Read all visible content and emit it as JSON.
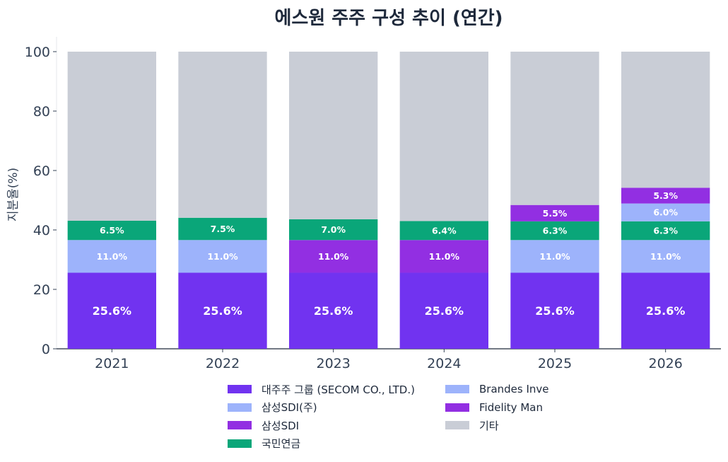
{
  "title": "에스원 주주 구성 추이 (연간)",
  "chart_data": {
    "type": "bar",
    "stacked": true,
    "title": "에스원 주주 구성 추이 (연간)",
    "xlabel": "",
    "ylabel": "지분율(%)",
    "ylim": [
      0,
      105
    ],
    "yticks": [
      "0",
      "20",
      "40",
      "60",
      "80",
      "100"
    ],
    "categories": [
      "2021",
      "2022",
      "2023",
      "2024",
      "2025",
      "2026"
    ],
    "series": [
      {
        "name": "대주주 그룹 (SECOM CO., LTD.)",
        "color": "#7133f0",
        "values": [
          25.6,
          25.6,
          25.6,
          25.6,
          25.6,
          25.6
        ],
        "labels": [
          "25.6%",
          "25.6%",
          "25.6%",
          "25.6%",
          "25.6%",
          "25.6%"
        ]
      },
      {
        "name": "삼성SDI(주)",
        "color": "#9db3fb",
        "values": [
          11.0,
          11.0,
          0,
          0,
          11.0,
          11.0
        ],
        "labels": [
          "11.0%",
          "11.0%",
          "",
          "",
          "11.0%",
          "11.0%"
        ]
      },
      {
        "name": "삼성SDI",
        "color": "#922fe2",
        "values": [
          0,
          0,
          11.0,
          11.0,
          0,
          0
        ],
        "labels": [
          "",
          "",
          "11.0%",
          "11.0%",
          "",
          ""
        ]
      },
      {
        "name": "국민연금",
        "color": "#0aa679",
        "values": [
          6.5,
          7.5,
          7.0,
          6.4,
          6.3,
          6.3
        ],
        "labels": [
          "6.5%",
          "7.5%",
          "7.0%",
          "6.4%",
          "6.3%",
          "6.3%"
        ]
      },
      {
        "name": "Brandes Inve",
        "color": "#9db3fb",
        "values": [
          0,
          0,
          0,
          0,
          0,
          6.0
        ],
        "labels": [
          "",
          "",
          "",
          "",
          "",
          "6.0%"
        ]
      },
      {
        "name": "Fidelity Man",
        "color": "#922fe2",
        "values": [
          0,
          0,
          0,
          0,
          5.5,
          5.3
        ],
        "labels": [
          "",
          "",
          "",
          "",
          "5.5%",
          "5.3%"
        ]
      },
      {
        "name": "기타",
        "color": "#c9cdd6",
        "values": [
          56.9,
          55.9,
          56.4,
          57.0,
          51.6,
          45.8
        ],
        "labels": [
          "",
          "",
          "",
          "",
          "",
          ""
        ]
      }
    ],
    "grid": false,
    "legend_position": "bottom"
  }
}
